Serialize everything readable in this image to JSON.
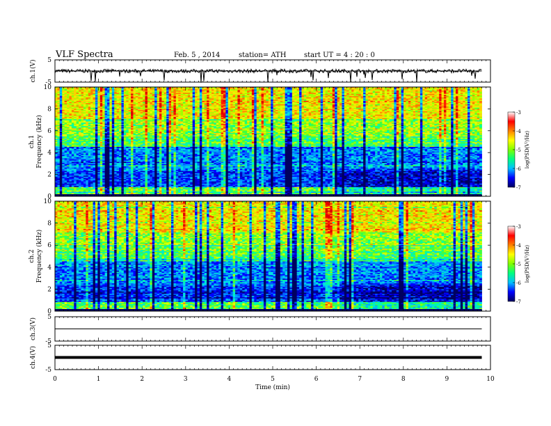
{
  "header": {
    "title": "VLF  Spectra",
    "date": "Feb. 5  , 2014",
    "station": "station= ATH",
    "start_ut": "start  UT  =   4  : 20 : 0"
  },
  "chart_data": {
    "type": "heatmap",
    "x_axis": {
      "label": "Time  (min)",
      "range": [
        0,
        10
      ],
      "ticks": [
        "0",
        "1",
        "2",
        "3",
        "4",
        "5",
        "6",
        "7",
        "8",
        "9",
        "10"
      ]
    },
    "data_end_min": 9.8,
    "panels": [
      {
        "kind": "waveform",
        "label": "ch.1(V)",
        "range": [
          -5,
          5
        ],
        "ticks": [
          "5",
          "-5"
        ],
        "level": 0,
        "noise": "high"
      },
      {
        "kind": "spectrogram",
        "label": "ch.1",
        "ylabel": "Frequency  (kHz)",
        "range": [
          0,
          10
        ],
        "ticks": [
          "0",
          "2",
          "4",
          "6",
          "8",
          "10"
        ],
        "colorbar": {
          "label": "log(PSD(V²/Hz)",
          "range": [
            -7,
            -3
          ],
          "ticks": [
            "-3",
            "-4",
            "-5",
            "-6",
            "-7"
          ]
        }
      },
      {
        "kind": "spectrogram",
        "label": "ch.2",
        "ylabel": "Frequency  (kHz)",
        "range": [
          0,
          10
        ],
        "ticks": [
          "0",
          "2",
          "4",
          "6",
          "8",
          "10"
        ],
        "colorbar": {
          "label": "log(PSD(V²/Hz)",
          "range": [
            -7,
            -3
          ],
          "ticks": [
            "-3",
            "-4",
            "-5",
            "-6",
            "-7"
          ]
        }
      },
      {
        "kind": "waveform",
        "label": "ch.3(V)",
        "range": [
          -5,
          5
        ],
        "ticks": [
          "5",
          "-5"
        ],
        "level": 0,
        "noise": "low"
      },
      {
        "kind": "waveform",
        "label": "ch.4(V)",
        "range": [
          -5,
          5
        ],
        "ticks": [
          "5",
          "-5"
        ],
        "level": 0,
        "noise": "thick"
      }
    ],
    "colors": [
      "#000060",
      "#0000ff",
      "#00c0ff",
      "#00ff80",
      "#80ff00",
      "#ffff00",
      "#ff8000",
      "#ff0000",
      "#ffffff"
    ]
  }
}
